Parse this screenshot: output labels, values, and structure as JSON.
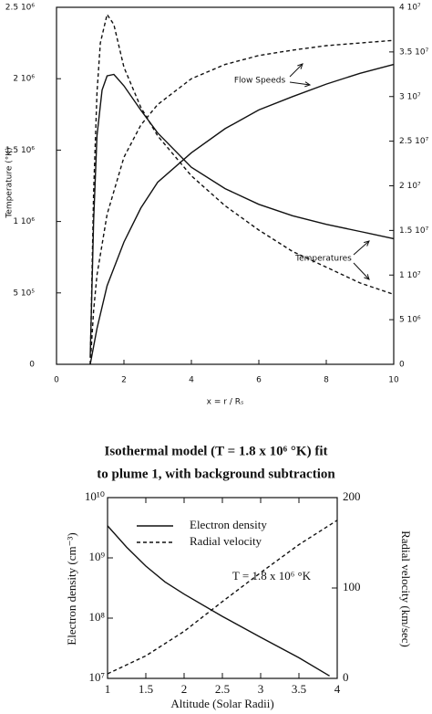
{
  "chart_data": [
    {
      "type": "line",
      "xlabel": "x = r / Rₛ",
      "ylabel": "Temperature (°K)",
      "xlim": [
        0,
        10
      ],
      "xticks": [
        0,
        2,
        4,
        6,
        8,
        10
      ],
      "ylim": [
        0,
        2500000
      ],
      "yticks": [
        0,
        {
          "value": 500000,
          "label": "5 10⁵"
        },
        {
          "value": 1000000,
          "label": "1 10⁶"
        },
        {
          "value": 1500000,
          "label": "1.5 10⁶"
        },
        {
          "value": 2000000,
          "label": "2 10⁶"
        },
        {
          "value": 2500000,
          "label": "2.5 10⁶"
        }
      ],
      "y2lim": [
        0,
        40000000
      ],
      "y2ticks": [
        0,
        {
          "value": 5000000,
          "label": "5 10⁶"
        },
        {
          "value": 10000000,
          "label": "1 10⁷"
        },
        {
          "value": 15000000,
          "label": "1.5 10⁷"
        },
        {
          "value": 20000000,
          "label": "2 10⁷"
        },
        {
          "value": 25000000,
          "label": "2.5 10⁷"
        },
        {
          "value": 30000000,
          "label": "3 10⁷"
        },
        {
          "value": 35000000,
          "label": "3.5 10⁷"
        },
        {
          "value": 40000000,
          "label": "4 10⁷"
        }
      ],
      "annotations": [
        "Flow Speeds",
        "Temperatures"
      ],
      "series": [
        {
          "color": "#111111",
          "linestyle": "solid",
          "x": [
            1,
            1.1,
            1.2,
            1.35,
            1.5,
            1.7,
            2,
            2.5,
            3,
            4,
            5,
            6,
            7,
            8,
            9,
            10
          ],
          "values": [
            50000,
            1000000,
            1600000,
            1920000,
            2020000,
            2030000,
            1950000,
            1780000,
            1620000,
            1380000,
            1230000,
            1120000,
            1040000,
            980000,
            930000,
            880000
          ]
        },
        {
          "color": "#111111",
          "linestyle": "dashed",
          "x": [
            1,
            1.1,
            1.2,
            1.3,
            1.5,
            1.7,
            2,
            2.5,
            3,
            4,
            5,
            6,
            7,
            8,
            9,
            10
          ],
          "values": [
            0,
            1200000,
            1900000,
            2250000,
            2450000,
            2380000,
            2080000,
            1800000,
            1600000,
            1320000,
            1110000,
            940000,
            790000,
            680000,
            570000,
            490000
          ]
        },
        {
          "color": "#111111",
          "linestyle": "solid",
          "axis": "y2",
          "x": [
            1,
            1.2,
            1.5,
            2,
            2.5,
            3,
            4,
            5,
            6,
            7,
            8,
            9,
            10
          ],
          "values": [
            0,
            4000000,
            8800000,
            13700000,
            17500000,
            20400000,
            23700000,
            26400000,
            28500000,
            30000000,
            31400000,
            32600000,
            33600000
          ]
        },
        {
          "color": "#111111",
          "linestyle": "dashed",
          "axis": "y2",
          "x": [
            1,
            1.1,
            1.2,
            1.5,
            2,
            2.5,
            3,
            4,
            5,
            6,
            7,
            8,
            9,
            10
          ],
          "values": [
            0,
            6000000,
            10000000,
            16800000,
            23200000,
            26800000,
            29100000,
            32000000,
            33600000,
            34600000,
            35200000,
            35700000,
            36000000,
            36300000
          ]
        }
      ]
    },
    {
      "type": "line",
      "title": [
        "Isothermal model (T = 1.8 x 10⁶ °K) fit",
        "to plume 1, with background subtraction"
      ],
      "xlabel": "Altitude (Solar Radii)",
      "ylabel": "Electron density (cm⁻³)",
      "y2label": "Radial velocity (km/sec)",
      "xlim": [
        1,
        4
      ],
      "xticks": [
        1,
        1.5,
        2,
        2.5,
        3,
        3.5,
        4
      ],
      "ylog": true,
      "ylim": [
        10000000,
        10000000000
      ],
      "yticks": [
        {
          "value": 10000000,
          "label": "10⁷"
        },
        {
          "value": 100000000,
          "label": "10⁸"
        },
        {
          "value": 1000000000,
          "label": "10⁹"
        },
        {
          "value": 10000000000,
          "label": "10¹⁰"
        }
      ],
      "y2lim": [
        0,
        200
      ],
      "y2ticks": [
        0,
        100,
        200
      ],
      "annotations": [
        "T = 1.8 x 10⁶ °K"
      ],
      "series": [
        {
          "name": "Electron density",
          "color": "#111111",
          "linestyle": "solid",
          "x": [
            1,
            1.25,
            1.5,
            1.75,
            2,
            2.5,
            3,
            3.5,
            3.9
          ],
          "values": [
            3400000000,
            1500000000,
            730000000,
            400000000,
            250000000,
            107000000,
            48000000,
            22000000,
            11000000
          ]
        },
        {
          "name": "Radial velocity",
          "color": "#111111",
          "linestyle": "dashed",
          "axis": "y2",
          "x": [
            1,
            1.5,
            2,
            2.5,
            3,
            3.5,
            4
          ],
          "values": [
            5,
            25,
            52,
            85,
            117,
            148,
            175
          ]
        }
      ]
    }
  ]
}
